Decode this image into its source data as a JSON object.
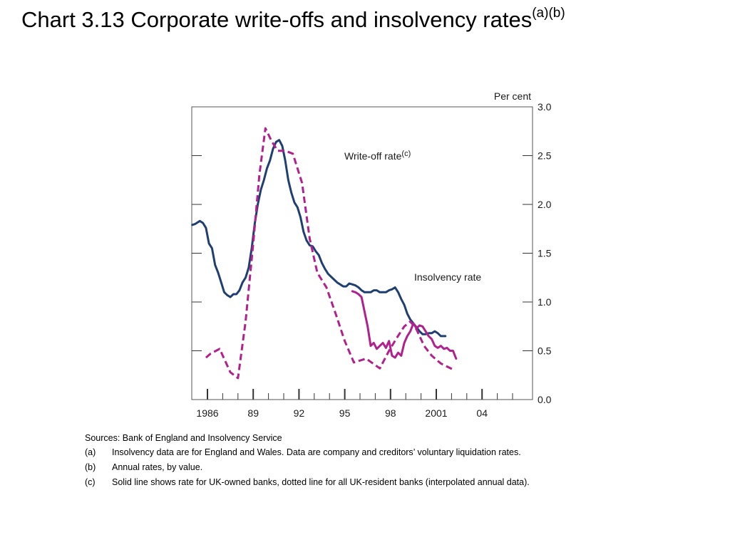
{
  "title": {
    "main": "Chart 3.13  Corporate write-offs and insolvency rates",
    "superscript": "(a)(b)"
  },
  "chart_data": {
    "type": "line",
    "unit_label": "Per cent",
    "ylim": [
      0,
      3
    ],
    "y_ticks": [
      "0.0",
      "0.5",
      "1.0",
      "1.5",
      "2.0",
      "2.5",
      "3.0"
    ],
    "x_tick_labels": [
      {
        "year": 1986,
        "label": "1986"
      },
      {
        "year": 1989,
        "label": "89"
      },
      {
        "year": 1992,
        "label": "92"
      },
      {
        "year": 1995,
        "label": "95"
      },
      {
        "year": 1998,
        "label": "98"
      },
      {
        "year": 2001,
        "label": "2001"
      },
      {
        "year": 2004,
        "label": "04"
      }
    ],
    "series": [
      {
        "name": "Insolvency rate",
        "style": "solid",
        "color": "#1f3f72",
        "points": [
          [
            1985.0,
            1.79
          ],
          [
            1985.2,
            1.8
          ],
          [
            1985.5,
            1.83
          ],
          [
            1985.7,
            1.81
          ],
          [
            1985.9,
            1.76
          ],
          [
            1986.1,
            1.6
          ],
          [
            1986.3,
            1.55
          ],
          [
            1986.5,
            1.38
          ],
          [
            1986.7,
            1.3
          ],
          [
            1986.9,
            1.2
          ],
          [
            1987.1,
            1.1
          ],
          [
            1987.3,
            1.07
          ],
          [
            1987.5,
            1.05
          ],
          [
            1987.7,
            1.08
          ],
          [
            1987.9,
            1.08
          ],
          [
            1988.1,
            1.12
          ],
          [
            1988.3,
            1.2
          ],
          [
            1988.5,
            1.25
          ],
          [
            1988.7,
            1.35
          ],
          [
            1988.9,
            1.55
          ],
          [
            1989.1,
            1.8
          ],
          [
            1989.3,
            2.0
          ],
          [
            1989.5,
            2.15
          ],
          [
            1989.7,
            2.25
          ],
          [
            1989.9,
            2.37
          ],
          [
            1990.1,
            2.45
          ],
          [
            1990.3,
            2.57
          ],
          [
            1990.5,
            2.64
          ],
          [
            1990.7,
            2.66
          ],
          [
            1990.9,
            2.6
          ],
          [
            1991.1,
            2.45
          ],
          [
            1991.3,
            2.25
          ],
          [
            1991.5,
            2.12
          ],
          [
            1991.7,
            2.02
          ],
          [
            1991.9,
            1.97
          ],
          [
            1992.1,
            1.87
          ],
          [
            1992.3,
            1.72
          ],
          [
            1992.5,
            1.63
          ],
          [
            1992.7,
            1.58
          ],
          [
            1992.9,
            1.57
          ],
          [
            1993.1,
            1.52
          ],
          [
            1993.3,
            1.48
          ],
          [
            1993.5,
            1.4
          ],
          [
            1993.7,
            1.34
          ],
          [
            1993.9,
            1.29
          ],
          [
            1994.1,
            1.26
          ],
          [
            1994.3,
            1.23
          ],
          [
            1994.5,
            1.2
          ],
          [
            1994.7,
            1.18
          ],
          [
            1994.9,
            1.16
          ],
          [
            1995.1,
            1.16
          ],
          [
            1995.3,
            1.19
          ],
          [
            1995.5,
            1.18
          ],
          [
            1995.7,
            1.17
          ],
          [
            1995.9,
            1.15
          ],
          [
            1996.1,
            1.12
          ],
          [
            1996.3,
            1.1
          ],
          [
            1996.5,
            1.1
          ],
          [
            1996.7,
            1.1
          ],
          [
            1996.9,
            1.12
          ],
          [
            1997.1,
            1.12
          ],
          [
            1997.3,
            1.1
          ],
          [
            1997.5,
            1.1
          ],
          [
            1997.7,
            1.1
          ],
          [
            1997.9,
            1.12
          ],
          [
            1998.1,
            1.13
          ],
          [
            1998.3,
            1.15
          ],
          [
            1998.5,
            1.1
          ],
          [
            1998.7,
            1.03
          ],
          [
            1998.9,
            0.97
          ],
          [
            1999.1,
            0.88
          ],
          [
            1999.3,
            0.82
          ],
          [
            1999.5,
            0.78
          ],
          [
            1999.7,
            0.74
          ],
          [
            1999.9,
            0.7
          ],
          [
            2000.1,
            0.67
          ],
          [
            2000.3,
            0.67
          ],
          [
            2000.5,
            0.68
          ],
          [
            2000.7,
            0.68
          ],
          [
            2000.9,
            0.7
          ],
          [
            2001.1,
            0.68
          ],
          [
            2001.3,
            0.65
          ],
          [
            2001.6,
            0.65
          ]
        ]
      },
      {
        "name": "Write-off rate",
        "superscript": "(c)",
        "style": "solid",
        "color": "#b0208e",
        "points": [
          [
            1995.5,
            1.11
          ],
          [
            1995.7,
            1.1
          ],
          [
            1995.9,
            1.08
          ],
          [
            1996.1,
            1.05
          ],
          [
            1996.3,
            0.9
          ],
          [
            1996.5,
            0.75
          ],
          [
            1996.7,
            0.55
          ],
          [
            1996.9,
            0.58
          ],
          [
            1997.1,
            0.52
          ],
          [
            1997.3,
            0.55
          ],
          [
            1997.5,
            0.58
          ],
          [
            1997.7,
            0.53
          ],
          [
            1997.9,
            0.6
          ],
          [
            1998.1,
            0.45
          ],
          [
            1998.3,
            0.43
          ],
          [
            1998.5,
            0.48
          ],
          [
            1998.7,
            0.45
          ],
          [
            1998.9,
            0.58
          ],
          [
            1999.1,
            0.65
          ],
          [
            1999.3,
            0.7
          ],
          [
            1999.5,
            0.78
          ],
          [
            1999.7,
            0.73
          ],
          [
            1999.9,
            0.76
          ],
          [
            2000.1,
            0.75
          ],
          [
            2000.3,
            0.7
          ],
          [
            2000.5,
            0.65
          ],
          [
            2000.7,
            0.62
          ],
          [
            2000.9,
            0.55
          ],
          [
            2001.1,
            0.53
          ],
          [
            2001.3,
            0.55
          ],
          [
            2001.5,
            0.52
          ],
          [
            2001.7,
            0.53
          ],
          [
            2001.9,
            0.5
          ],
          [
            2002.1,
            0.5
          ],
          [
            2002.3,
            0.42
          ]
        ]
      },
      {
        "name": "Write-off rate (all UK-resident banks)",
        "style": "dashed",
        "color": "#b0208e",
        "points": [
          [
            1985.9,
            0.43
          ],
          [
            1986.2,
            0.47
          ],
          [
            1986.8,
            0.52
          ],
          [
            1987.5,
            0.28
          ],
          [
            1988.0,
            0.22
          ],
          [
            1988.5,
            0.8
          ],
          [
            1989.0,
            1.6
          ],
          [
            1989.4,
            2.3
          ],
          [
            1989.8,
            2.78
          ],
          [
            1990.2,
            2.65
          ],
          [
            1990.6,
            2.55
          ],
          [
            1991.1,
            2.55
          ],
          [
            1991.6,
            2.52
          ],
          [
            1992.2,
            2.22
          ],
          [
            1992.7,
            1.65
          ],
          [
            1993.2,
            1.3
          ],
          [
            1993.8,
            1.15
          ],
          [
            1994.4,
            0.88
          ],
          [
            1995.0,
            0.6
          ],
          [
            1995.6,
            0.38
          ],
          [
            1996.4,
            0.42
          ],
          [
            1997.3,
            0.32
          ],
          [
            1997.9,
            0.5
          ],
          [
            1998.4,
            0.63
          ],
          [
            1998.9,
            0.75
          ],
          [
            1999.3,
            0.8
          ],
          [
            1999.7,
            0.72
          ],
          [
            2000.2,
            0.55
          ],
          [
            2000.7,
            0.45
          ],
          [
            2001.3,
            0.37
          ],
          [
            2002.2,
            0.3
          ]
        ]
      }
    ]
  },
  "notes": {
    "sources": "Sources: Bank of England and Insolvency Service",
    "items": [
      {
        "label": "(a)",
        "text": "Insolvency data are for England and Wales.  Data are company and creditors’ voluntary liquidation rates."
      },
      {
        "label": "(b)",
        "text": "Annual rates, by value."
      },
      {
        "label": "(c)",
        "text": "Solid line shows rate for UK-owned banks, dotted line for all UK-resident banks (interpolated annual data)."
      }
    ]
  }
}
